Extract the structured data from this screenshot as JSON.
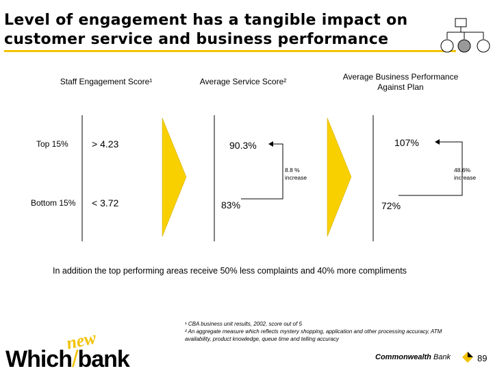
{
  "title": {
    "line1": "Level of engagement has a tangible impact on",
    "line2": "customer service and business performance"
  },
  "columns": {
    "engagement": "Staff Engagement Score¹",
    "service": "Average Service Score²",
    "business_line1": "Average Business Performance",
    "business_line2": "Against Plan"
  },
  "rows": {
    "top_label": "Top 15%",
    "top_score": "> 4.23",
    "bottom_label": "Bottom 15%",
    "bottom_score": "< 3.72"
  },
  "service": {
    "top": "90.3%",
    "bottom": "83%",
    "increase_value": "8.8 %",
    "increase_word": "increase"
  },
  "business": {
    "top": "107%",
    "bottom": "72%",
    "increase_value": "48.6%",
    "increase_word": "increase"
  },
  "note": "In addition the top performing areas receive 50% less complaints and 40% more compliments",
  "footnotes": {
    "f1": "¹ CBA business unit results, 2002, score out of 5",
    "f2": "² An aggregate measure which reflects mystery shopping, application and other processing accuracy, ATM",
    "f3": "availability, product knowledge, queue time and telling accuracy"
  },
  "footer": {
    "logo_which": "Which",
    "logo_bank": "bank",
    "logo_new": "new",
    "brand_a": "Commonwealth",
    "brand_b": "Bank",
    "page_number": "89"
  },
  "colors": {
    "accent_yellow": "#f2c200",
    "arrow_fill": "#f8d000"
  }
}
